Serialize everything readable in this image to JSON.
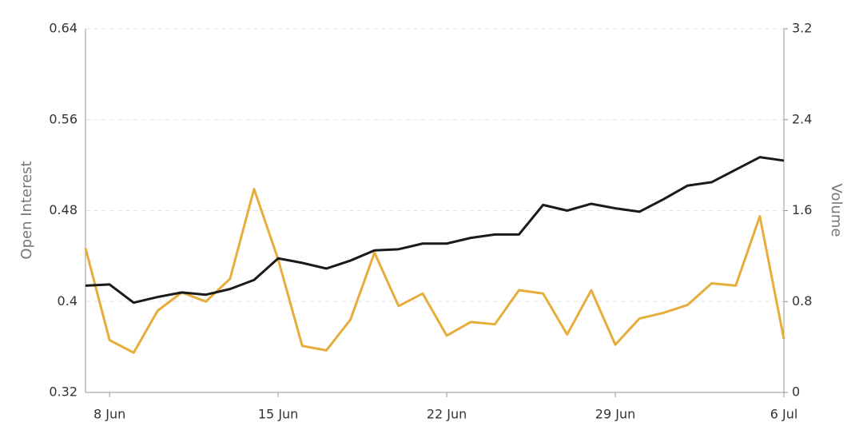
{
  "chart_data": {
    "type": "line",
    "categories": [
      null,
      "8 Jun",
      null,
      null,
      null,
      null,
      null,
      null,
      "15 Jun",
      null,
      null,
      null,
      null,
      null,
      null,
      "22 Jun",
      null,
      null,
      null,
      null,
      null,
      null,
      "29 Jun",
      null,
      null,
      null,
      null,
      null,
      null,
      "6 Jul"
    ],
    "y_label": "Open Interest",
    "y2_label": "Volume",
    "ylim": [
      0.32,
      0.64
    ],
    "yticks": [
      0.32,
      0.4,
      0.48,
      0.56,
      0.64
    ],
    "y2lim": [
      0,
      3.2
    ],
    "y2ticks": [
      0,
      0.8,
      1.6,
      2.4,
      3.2
    ],
    "grid": true,
    "series": [
      {
        "name": "Open Interest",
        "color": "#1a1a1a",
        "values": [
          0.414,
          0.415,
          0.399,
          0.404,
          0.408,
          0.406,
          0.411,
          0.419,
          0.438,
          0.434,
          0.429,
          0.436,
          0.445,
          0.446,
          0.451,
          0.451,
          0.456,
          0.459,
          0.459,
          0.485,
          0.48,
          0.486,
          0.482,
          0.479,
          0.49,
          0.502,
          0.505,
          0.516,
          0.527,
          0.524
        ]
      },
      {
        "name": "Volume",
        "color": "#e6ad3b",
        "axis": "y2",
        "values": [
          1.27,
          0.46,
          0.35,
          0.72,
          0.88,
          0.8,
          1.0,
          1.79,
          1.17,
          0.41,
          0.37,
          0.64,
          1.23,
          0.76,
          0.87,
          0.5,
          0.62,
          0.6,
          0.9,
          0.87,
          0.51,
          0.9,
          0.42,
          0.65,
          0.7,
          0.77,
          0.96,
          0.94,
          1.55,
          0.47
        ]
      }
    ]
  }
}
